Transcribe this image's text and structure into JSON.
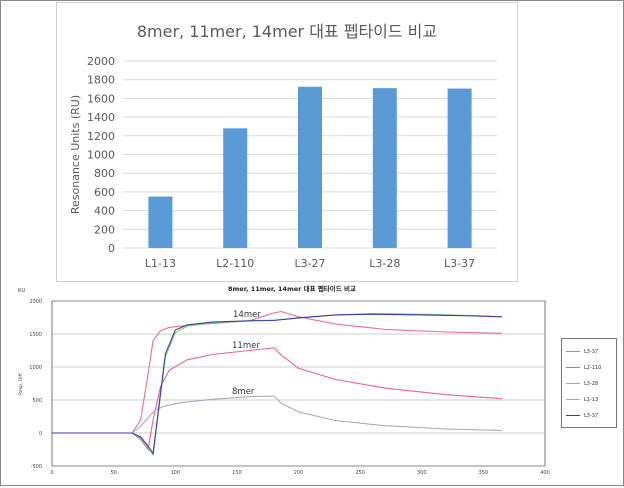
{
  "chart_data": [
    {
      "type": "bar",
      "title": "8mer, 11mer, 14mer 대표 펩타이드 비교",
      "ylabel": "Resonance Units (RU)",
      "ylim": [
        0,
        2000
      ],
      "yticks": [
        0,
        200,
        400,
        600,
        800,
        1000,
        1200,
        1400,
        1600,
        1800,
        2000
      ],
      "categories": [
        "L1-13",
        "L2-110",
        "L3-27",
        "L3-28",
        "L3-37"
      ],
      "values": [
        550,
        1280,
        1725,
        1710,
        1705
      ],
      "grid": true,
      "color": "#5b9bd5"
    },
    {
      "type": "line",
      "title": "8mer, 11mer, 14mer 대표 펩타이드 비교",
      "ylabel": "Resp. Diff.",
      "yunit": "RU",
      "xlim": [
        0,
        400
      ],
      "ylim": [
        -500,
        2000
      ],
      "xticks": [
        0,
        50,
        100,
        150,
        200,
        250,
        300,
        350,
        400
      ],
      "yticks": [
        -500,
        0,
        500,
        1000,
        1500,
        2000
      ],
      "annotations": [
        "14mer",
        "11mer",
        "8mer"
      ],
      "legend_position": "right",
      "series": [
        {
          "name": "L3-37",
          "color": "#e8728a",
          "x": [
            0,
            65,
            72,
            78,
            82,
            88,
            95,
            110,
            130,
            160,
            180,
            186,
            200,
            230,
            270,
            320,
            365
          ],
          "y": [
            0,
            0,
            200,
            900,
            1400,
            1550,
            1600,
            1630,
            1660,
            1700,
            1820,
            1840,
            1760,
            1650,
            1570,
            1530,
            1510
          ]
        },
        {
          "name": "L2-110",
          "color": "#e860a0",
          "x": [
            0,
            65,
            72,
            78,
            82,
            88,
            95,
            110,
            130,
            160,
            180,
            186,
            200,
            230,
            270,
            320,
            365
          ],
          "y": [
            0,
            0,
            -100,
            -250,
            200,
            700,
            950,
            1110,
            1190,
            1250,
            1290,
            1180,
            980,
            810,
            680,
            580,
            520
          ]
        },
        {
          "name": "L3-28",
          "color": "#7fcf6a",
          "x": [
            0,
            65,
            72,
            78,
            82,
            86,
            92,
            100,
            110,
            130,
            160,
            180,
            200,
            230,
            260,
            300,
            340,
            365
          ],
          "y": [
            0,
            0,
            -80,
            -230,
            -330,
            250,
            1150,
            1520,
            1620,
            1670,
            1700,
            1710,
            1740,
            1790,
            1810,
            1800,
            1780,
            1760
          ]
        },
        {
          "name": "L1-13",
          "color": "#a8a8c0",
          "x": [
            0,
            65,
            72,
            78,
            84,
            92,
            105,
            130,
            160,
            180,
            186,
            200,
            230,
            270,
            320,
            365
          ],
          "y": [
            0,
            0,
            100,
            230,
            350,
            410,
            460,
            510,
            550,
            560,
            450,
            320,
            190,
            110,
            60,
            40
          ]
        },
        {
          "name": "L3-37",
          "color": "#3c3ca8",
          "x": [
            0,
            65,
            72,
            78,
            82,
            86,
            92,
            100,
            110,
            130,
            160,
            180,
            200,
            230,
            260,
            300,
            340,
            365
          ],
          "y": [
            0,
            0,
            -60,
            -200,
            -310,
            300,
            1200,
            1560,
            1640,
            1680,
            1700,
            1705,
            1745,
            1790,
            1800,
            1790,
            1775,
            1760
          ]
        }
      ]
    }
  ]
}
